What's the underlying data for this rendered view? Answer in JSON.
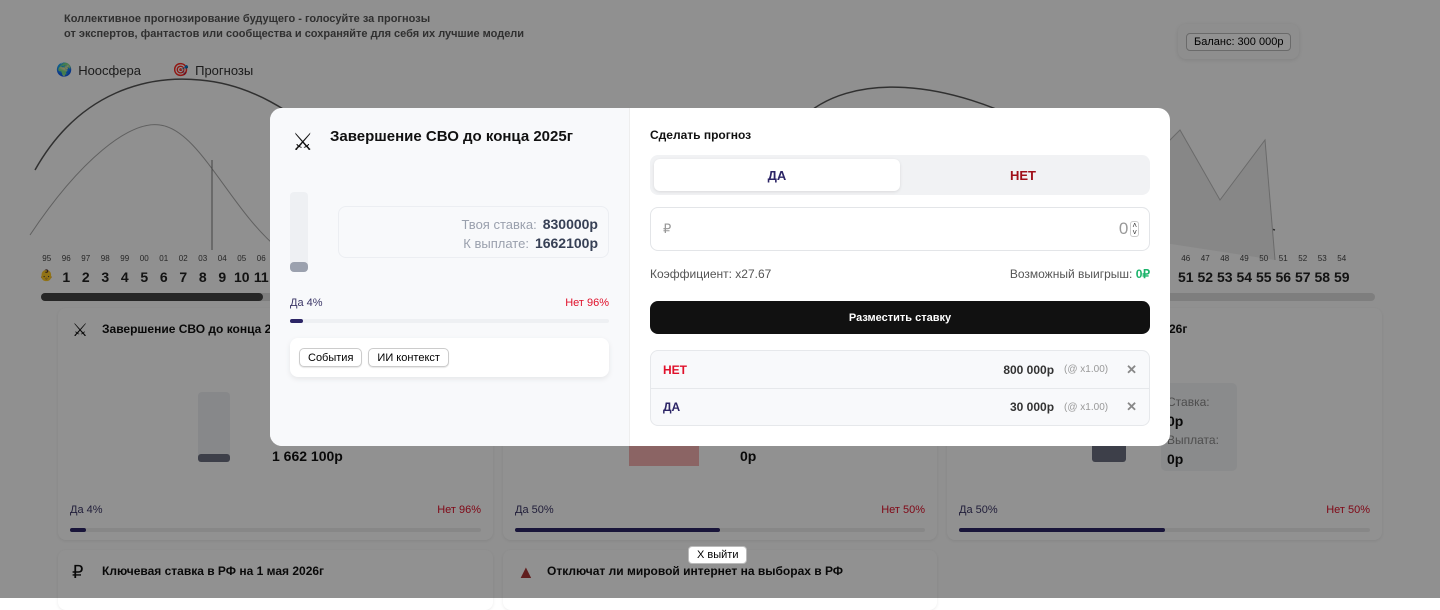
{
  "header": {
    "tagline_1": "Коллективное прогнозирование будущего - голосуйте за прогнозы",
    "tagline_2": "от экспертов, фантастов или сообщества и сохраняйте для себя их лучшие модели",
    "nav": [
      {
        "label": "Ноосфера",
        "icon": "globe-icon"
      },
      {
        "label": "Прогнозы",
        "icon": "forecast-icon"
      }
    ],
    "balance": "Баланс: 300 000р"
  },
  "timeline": {
    "years_left": [
      "95",
      "96",
      "97",
      "98",
      "99",
      "00",
      "01",
      "02",
      "03",
      "04",
      "05",
      "06"
    ],
    "nums_left": [
      "1",
      "2",
      "3",
      "4",
      "5",
      "6",
      "7",
      "8",
      "9",
      "10",
      "11"
    ],
    "years_right": [
      "46",
      "47",
      "48",
      "49",
      "50",
      "51",
      "52",
      "53",
      "54"
    ],
    "nums_right": [
      "51",
      "52",
      "53",
      "54",
      "55",
      "56",
      "57",
      "58",
      "59"
    ]
  },
  "cards": [
    {
      "title": "Завершение СВО до конца 2",
      "payout": "1 662 100р",
      "yes": "Да 4%",
      "no": "Нет 96%",
      "yes_pct": 4
    },
    {
      "payout": "0р",
      "yes": "Да 50%",
      "no": "Нет 50%",
      "yes_pct": 50
    },
    {
      "title": "26г",
      "stake_label": "Ставка:",
      "stake": "0р",
      "payout_label": "Выплата:",
      "payout": "0р",
      "yes": "Да 50%",
      "no": "Нет 50%",
      "yes_pct": 50
    },
    {
      "title": "Ключевая ставка в РФ на 1 мая 2026г",
      "icon": "ruble-icon"
    },
    {
      "title": "Отключат ли мировой интернет на выборах в РФ",
      "icon": "kremlin-tower-icon"
    }
  ],
  "modal": {
    "title": "Завершение СВО до конца 2025г",
    "icon": "crossed-weapons-icon",
    "stake_label": "Твоя ставка:",
    "stake": "830000р",
    "payout_label": "К выплате:",
    "payout": "1662100р",
    "yes": "Да 4%",
    "no": "Нет 96%",
    "yes_pct": 4,
    "tabs": [
      "События",
      "ИИ контекст"
    ],
    "heading": "Сделать прогноз",
    "opt_yes": "ДА",
    "opt_no": "НЕТ",
    "currency": "₽",
    "amount": "0",
    "coef": "Коэффициент: x27.67",
    "win_label": "Возможный выигрыш:",
    "win": "0₽",
    "place": "Разместить ставку",
    "bets": [
      {
        "side": "НЕТ",
        "amount": "800 000р",
        "mult": "(@ x1.00)",
        "color": "#e0102a"
      },
      {
        "side": "ДА",
        "amount": "30 000р",
        "mult": "(@ x1.00)",
        "color": "#2c2566"
      }
    ]
  },
  "exit": "X выйти"
}
